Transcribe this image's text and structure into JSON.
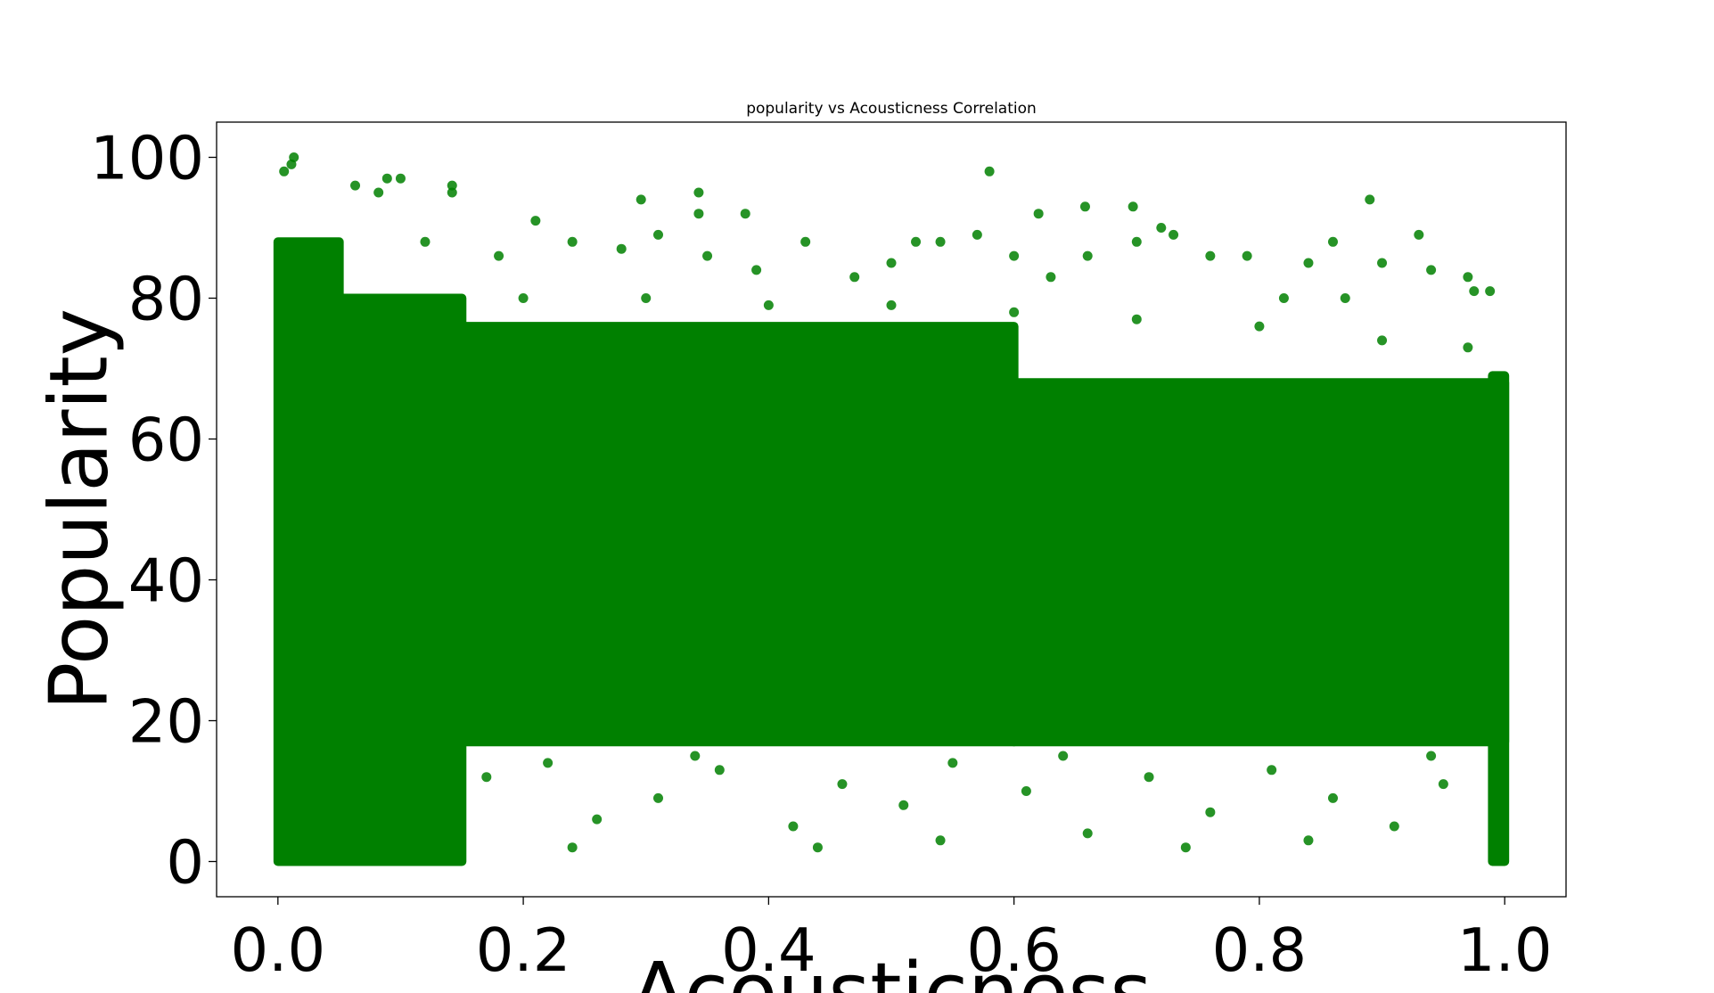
{
  "chart_data": {
    "type": "scatter",
    "title": "popularity vs Acousticness Correlation",
    "xlabel": "Acousticness",
    "ylabel": "Popularity",
    "xlim": [
      -0.05,
      1.05
    ],
    "ylim": [
      -5,
      105
    ],
    "xticks": [
      0.0,
      0.2,
      0.4,
      0.6,
      0.8,
      1.0
    ],
    "xtick_labels": [
      "0.0",
      "0.2",
      "0.4",
      "0.6",
      "0.8",
      "1.0"
    ],
    "yticks": [
      0,
      20,
      40,
      60,
      80,
      100
    ],
    "ytick_labels": [
      "0",
      "20",
      "40",
      "60",
      "80",
      "100"
    ],
    "grid": false,
    "legend": "none",
    "marker_color": "#008000",
    "density_bands": [
      {
        "x": [
          0.0,
          0.05
        ],
        "y": [
          0,
          88
        ]
      },
      {
        "x": [
          0.05,
          0.15
        ],
        "y": [
          0,
          80
        ]
      },
      {
        "x": [
          0.15,
          0.6
        ],
        "y": [
          17,
          76
        ]
      },
      {
        "x": [
          0.6,
          1.0
        ],
        "y": [
          17,
          68
        ]
      },
      {
        "x": [
          0.99,
          1.0
        ],
        "y": [
          0,
          69
        ]
      }
    ],
    "outlier_points": [
      {
        "x": 0.005,
        "y": 98
      },
      {
        "x": 0.013,
        "y": 100
      },
      {
        "x": 0.011,
        "y": 99
      },
      {
        "x": 0.063,
        "y": 96
      },
      {
        "x": 0.082,
        "y": 95
      },
      {
        "x": 0.089,
        "y": 97
      },
      {
        "x": 0.1,
        "y": 97
      },
      {
        "x": 0.142,
        "y": 96
      },
      {
        "x": 0.142,
        "y": 95
      },
      {
        "x": 0.296,
        "y": 94
      },
      {
        "x": 0.343,
        "y": 95
      },
      {
        "x": 0.343,
        "y": 92
      },
      {
        "x": 0.381,
        "y": 92
      },
      {
        "x": 0.58,
        "y": 98
      },
      {
        "x": 0.62,
        "y": 92
      },
      {
        "x": 0.658,
        "y": 93
      },
      {
        "x": 0.697,
        "y": 93
      },
      {
        "x": 0.89,
        "y": 94
      },
      {
        "x": 0.93,
        "y": 89
      },
      {
        "x": 0.975,
        "y": 81
      },
      {
        "x": 0.988,
        "y": 81
      },
      {
        "x": 0.86,
        "y": 88
      },
      {
        "x": 0.72,
        "y": 90
      },
      {
        "x": 0.54,
        "y": 88
      }
    ],
    "scatter_points": [
      {
        "x": 0.12,
        "y": 88
      },
      {
        "x": 0.18,
        "y": 86
      },
      {
        "x": 0.21,
        "y": 91
      },
      {
        "x": 0.24,
        "y": 88
      },
      {
        "x": 0.28,
        "y": 87
      },
      {
        "x": 0.31,
        "y": 89
      },
      {
        "x": 0.35,
        "y": 86
      },
      {
        "x": 0.39,
        "y": 84
      },
      {
        "x": 0.43,
        "y": 88
      },
      {
        "x": 0.47,
        "y": 83
      },
      {
        "x": 0.5,
        "y": 85
      },
      {
        "x": 0.52,
        "y": 88
      },
      {
        "x": 0.57,
        "y": 89
      },
      {
        "x": 0.6,
        "y": 86
      },
      {
        "x": 0.63,
        "y": 83
      },
      {
        "x": 0.66,
        "y": 86
      },
      {
        "x": 0.7,
        "y": 88
      },
      {
        "x": 0.73,
        "y": 89
      },
      {
        "x": 0.76,
        "y": 86
      },
      {
        "x": 0.79,
        "y": 86
      },
      {
        "x": 0.82,
        "y": 80
      },
      {
        "x": 0.84,
        "y": 85
      },
      {
        "x": 0.87,
        "y": 80
      },
      {
        "x": 0.9,
        "y": 85
      },
      {
        "x": 0.94,
        "y": 84
      },
      {
        "x": 0.97,
        "y": 83
      },
      {
        "x": 0.2,
        "y": 80
      },
      {
        "x": 0.3,
        "y": 80
      },
      {
        "x": 0.4,
        "y": 79
      },
      {
        "x": 0.5,
        "y": 79
      },
      {
        "x": 0.6,
        "y": 78
      },
      {
        "x": 0.7,
        "y": 77
      },
      {
        "x": 0.8,
        "y": 76
      },
      {
        "x": 0.9,
        "y": 74
      },
      {
        "x": 0.97,
        "y": 73
      },
      {
        "x": 0.1,
        "y": 10
      },
      {
        "x": 0.17,
        "y": 12
      },
      {
        "x": 0.22,
        "y": 14
      },
      {
        "x": 0.26,
        "y": 6
      },
      {
        "x": 0.31,
        "y": 9
      },
      {
        "x": 0.36,
        "y": 13
      },
      {
        "x": 0.42,
        "y": 5
      },
      {
        "x": 0.46,
        "y": 11
      },
      {
        "x": 0.51,
        "y": 8
      },
      {
        "x": 0.55,
        "y": 14
      },
      {
        "x": 0.61,
        "y": 10
      },
      {
        "x": 0.66,
        "y": 4
      },
      {
        "x": 0.71,
        "y": 12
      },
      {
        "x": 0.76,
        "y": 7
      },
      {
        "x": 0.81,
        "y": 13
      },
      {
        "x": 0.86,
        "y": 9
      },
      {
        "x": 0.91,
        "y": 5
      },
      {
        "x": 0.95,
        "y": 11
      },
      {
        "x": 0.14,
        "y": 3
      },
      {
        "x": 0.24,
        "y": 2
      },
      {
        "x": 0.34,
        "y": 15
      },
      {
        "x": 0.44,
        "y": 2
      },
      {
        "x": 0.54,
        "y": 3
      },
      {
        "x": 0.64,
        "y": 15
      },
      {
        "x": 0.74,
        "y": 2
      },
      {
        "x": 0.84,
        "y": 3
      },
      {
        "x": 0.94,
        "y": 15
      }
    ]
  }
}
